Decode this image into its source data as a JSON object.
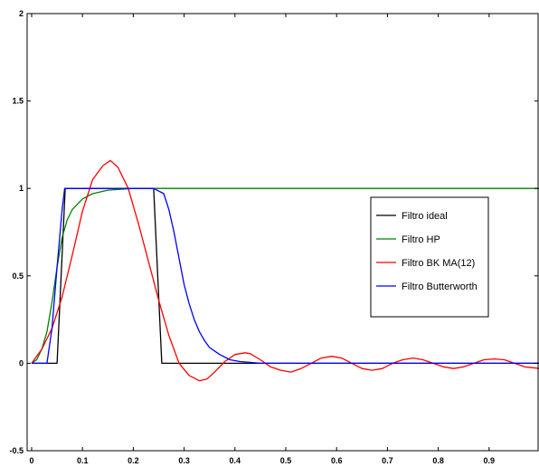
{
  "chart_data": {
    "type": "line",
    "title": "",
    "xlabel": "",
    "ylabel": "",
    "xlim": [
      0,
      1
    ],
    "ylim": [
      -0.5,
      2
    ],
    "grid": false,
    "legend_position": "right",
    "x_ticks": [
      0,
      0.1,
      0.2,
      0.3,
      0.4,
      0.5,
      0.6,
      0.7,
      0.8,
      0.9
    ],
    "x_tick_labels": [
      "0",
      "0.1",
      "0.2",
      "0.3",
      "0.4",
      "0.5",
      "0.6",
      "0.7",
      "0.8",
      "0.9"
    ],
    "y_ticks": [
      -0.5,
      0,
      0.5,
      1,
      1.5,
      2
    ],
    "y_tick_labels": [
      "-0.5",
      "0",
      "0.5",
      "1",
      "1.5",
      "2"
    ],
    "series": [
      {
        "name": "Filtro ideal",
        "color": "#000000",
        "x": [
          0,
          0.05,
          0.066,
          0.24,
          0.256,
          1
        ],
        "y": [
          0,
          0,
          1,
          1,
          0,
          0
        ]
      },
      {
        "name": "Filtro HP",
        "color": "#008000",
        "x": [
          0,
          0.01,
          0.02,
          0.03,
          0.04,
          0.05,
          0.06,
          0.07,
          0.08,
          0.1,
          0.12,
          0.15,
          0.2,
          0.3,
          0.5,
          0.7,
          1
        ],
        "y": [
          0,
          0.02,
          0.08,
          0.18,
          0.35,
          0.55,
          0.72,
          0.82,
          0.88,
          0.94,
          0.97,
          0.99,
          1,
          1,
          1,
          1,
          1
        ]
      },
      {
        "name": "Filtro BK MA(12)",
        "color": "#ff0000",
        "x": [
          0,
          0.02,
          0.04,
          0.06,
          0.08,
          0.1,
          0.12,
          0.14,
          0.155,
          0.17,
          0.19,
          0.21,
          0.23,
          0.25,
          0.27,
          0.29,
          0.31,
          0.33,
          0.345,
          0.36,
          0.38,
          0.4,
          0.42,
          0.43,
          0.45,
          0.47,
          0.49,
          0.51,
          0.53,
          0.55,
          0.57,
          0.59,
          0.61,
          0.63,
          0.65,
          0.67,
          0.69,
          0.71,
          0.73,
          0.75,
          0.77,
          0.79,
          0.81,
          0.83,
          0.85,
          0.87,
          0.89,
          0.91,
          0.93,
          0.95,
          0.97,
          1
        ],
        "y": [
          0,
          0.08,
          0.2,
          0.38,
          0.62,
          0.87,
          1.05,
          1.13,
          1.16,
          1.12,
          1.0,
          0.8,
          0.58,
          0.36,
          0.16,
          0.0,
          -0.07,
          -0.1,
          -0.09,
          -0.05,
          0.01,
          0.05,
          0.06,
          0.055,
          0.02,
          -0.02,
          -0.04,
          -0.05,
          -0.03,
          0.0,
          0.03,
          0.04,
          0.03,
          0.0,
          -0.03,
          -0.04,
          -0.03,
          0.0,
          0.02,
          0.03,
          0.02,
          0.0,
          -0.02,
          -0.03,
          -0.02,
          0.0,
          0.02,
          0.025,
          0.02,
          0.0,
          -0.02,
          -0.03
        ]
      },
      {
        "name": "Filtro Butterworth",
        "color": "#0000ff",
        "x": [
          0,
          0.03,
          0.04,
          0.05,
          0.06,
          0.065,
          0.1,
          0.15,
          0.24,
          0.26,
          0.27,
          0.28,
          0.29,
          0.3,
          0.31,
          0.32,
          0.33,
          0.34,
          0.35,
          0.37,
          0.39,
          0.41,
          0.43,
          0.45,
          0.5,
          0.6,
          0.8,
          1
        ],
        "y": [
          0,
          0,
          0.2,
          0.55,
          0.88,
          1,
          1,
          1,
          1,
          0.97,
          0.88,
          0.75,
          0.6,
          0.45,
          0.34,
          0.25,
          0.18,
          0.13,
          0.09,
          0.05,
          0.02,
          0.01,
          0.005,
          0,
          0,
          0,
          0,
          0
        ]
      }
    ]
  }
}
